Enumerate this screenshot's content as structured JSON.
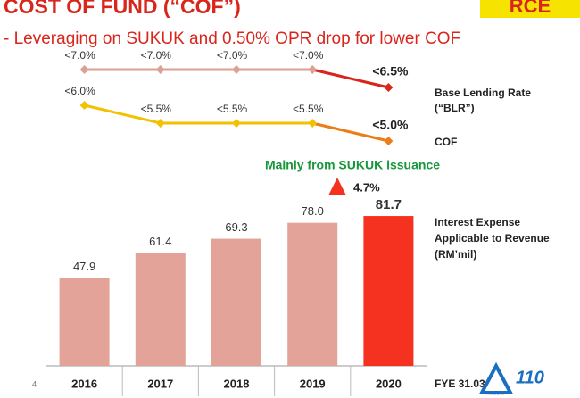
{
  "chart_data": {
    "type": "bar",
    "title": "COST OF FUND (“COF”)",
    "subtitle": "- Leveraging on SUKUK and 0.50% OPR drop for lower COF",
    "categories": [
      "2016",
      "2017",
      "2018",
      "2019",
      "2020"
    ],
    "ylim": [
      0,
      90
    ],
    "y2lim": [
      4,
      8
    ],
    "series": [
      {
        "name": "Interest Expense Applicable to Revenue (RM’mil)",
        "type": "bar",
        "color": "#e3a398",
        "highlight_color": "#f4321f",
        "values": [
          47.9,
          61.4,
          69.3,
          78.0,
          81.7
        ],
        "value_labels": [
          "47.9",
          "61.4",
          "69.3",
          "78.0",
          "81.7"
        ]
      },
      {
        "name": "Base Lending Rate (“BLR”)",
        "type": "line",
        "axis": "y2",
        "color": "#dba195",
        "highlight_color": "#d9261c",
        "values": [
          7.0,
          7.0,
          7.0,
          7.0,
          6.5
        ],
        "value_labels": [
          "<7.0%",
          "<7.0%",
          "<7.0%",
          "<7.0%",
          "<6.5%"
        ]
      },
      {
        "name": "COF",
        "type": "line",
        "axis": "y2",
        "color": "#f2c200",
        "highlight_color": "#ec7c1c",
        "values": [
          6.0,
          5.5,
          5.5,
          5.5,
          5.0
        ],
        "value_labels": [
          "<6.0%",
          "<5.5%",
          "<5.5%",
          "<5.5%",
          "<5.0%"
        ]
      }
    ],
    "annotations": [
      {
        "text": "Mainly from SUKUK issuance",
        "color": "#17963a"
      },
      {
        "text": "4.7%",
        "color": "#f4321f"
      }
    ]
  },
  "header": {
    "logo": "RCE"
  },
  "footer": {
    "page": "4",
    "fye": "FYE 31.03",
    "logo": "AMCORP",
    "anniversary": "110"
  }
}
